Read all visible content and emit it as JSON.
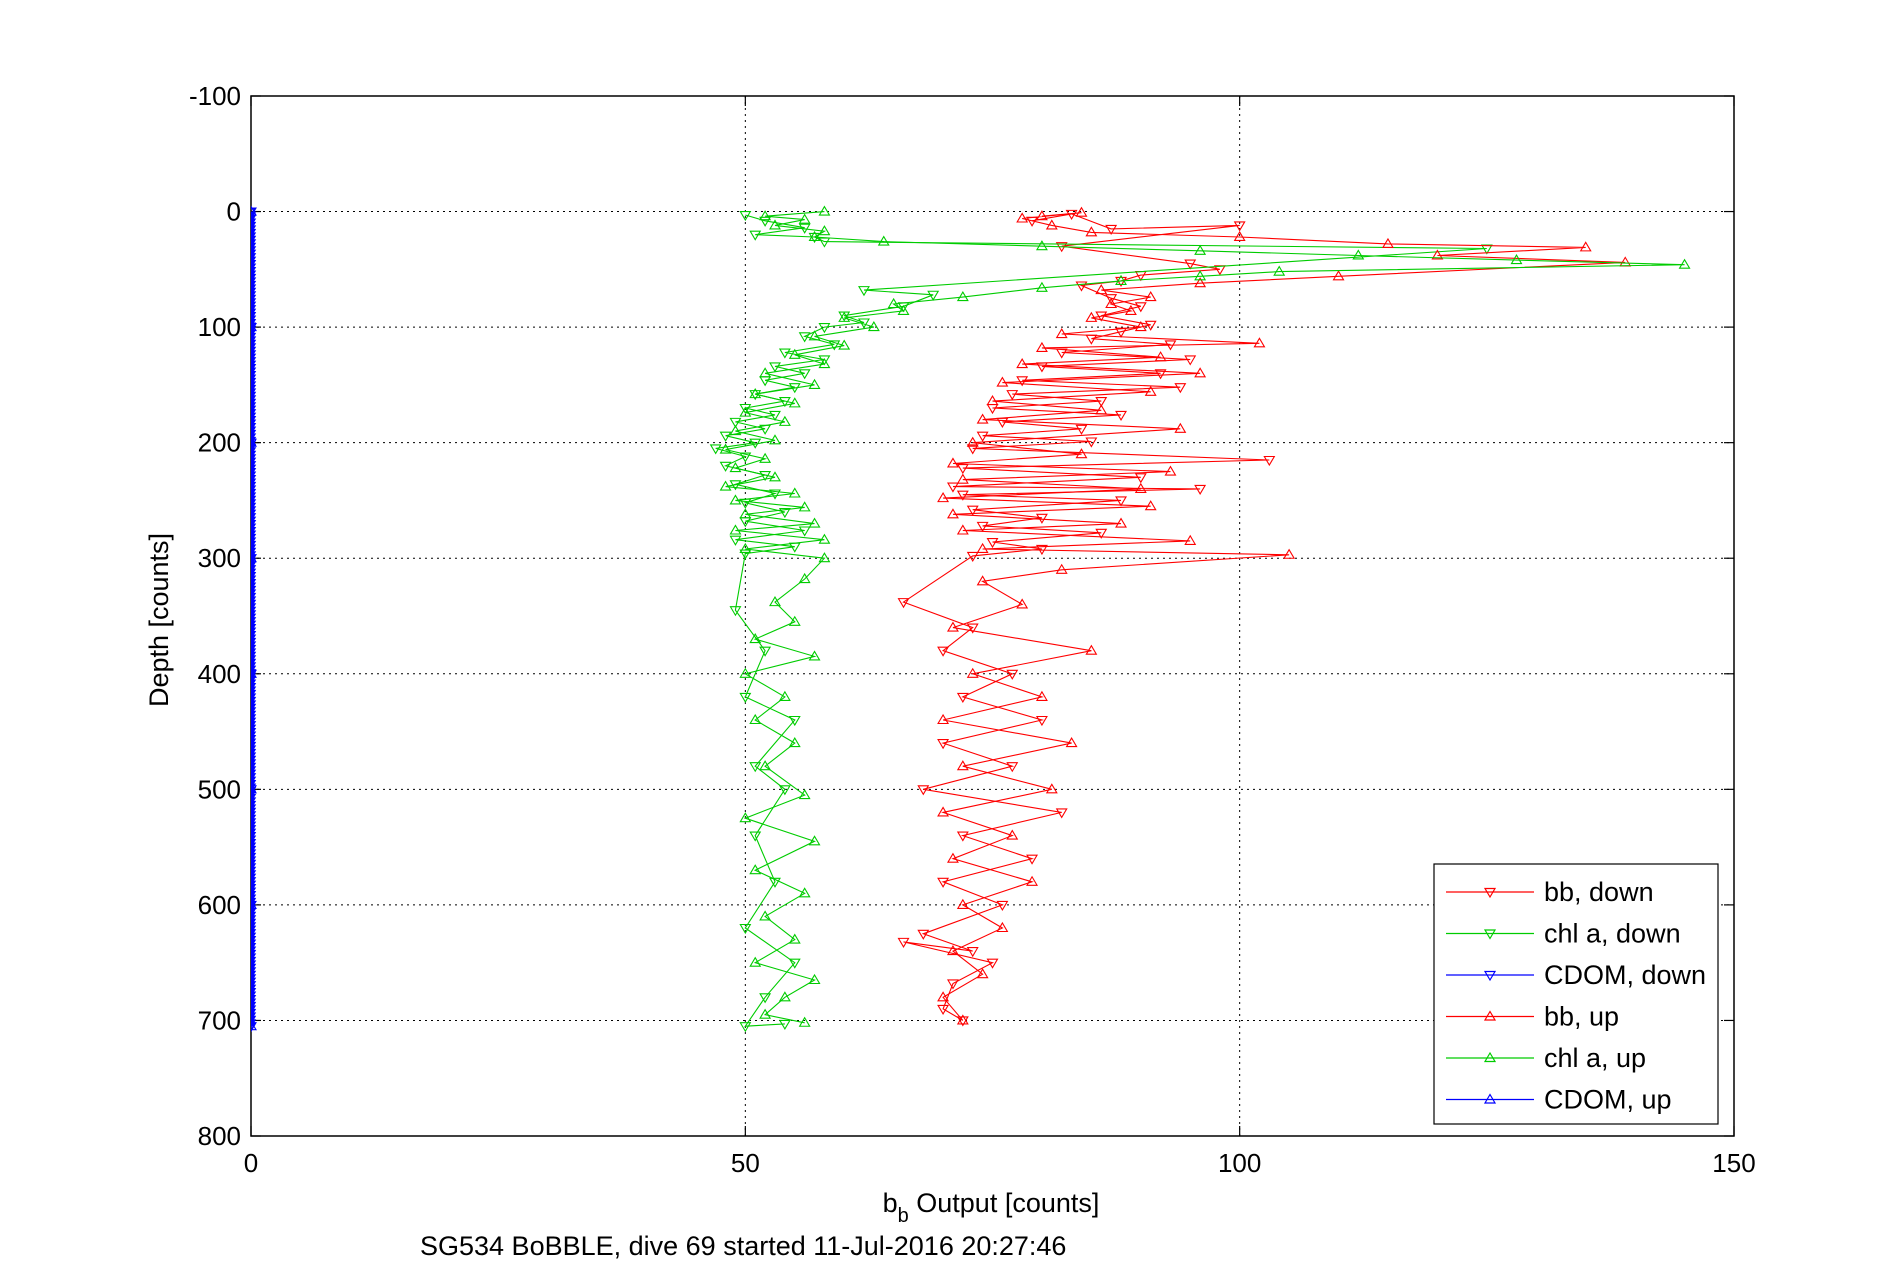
{
  "chart_data": {
    "type": "scatter",
    "xlabel_main": "b",
    "xlabel_sub": "b",
    "xlabel_rest": " Output [counts]",
    "ylabel": "Depth [counts]",
    "caption": "SG534 BoBBLE, dive 69 started 11-Jul-2016 20:27:46",
    "xlim": [
      0,
      150
    ],
    "ylim": [
      -100,
      800
    ],
    "y_reversed": true,
    "grid": true,
    "legend_position": "bottom-right",
    "xticks": [
      "0",
      "50",
      "100",
      "150"
    ],
    "yticks": [
      "-100",
      "0",
      "100",
      "200",
      "300",
      "400",
      "500",
      "600",
      "700",
      "800"
    ],
    "series": [
      {
        "name": "bb, down",
        "color": "#ff0000",
        "marker": "triangle-down",
        "line": true,
        "points": [
          [
            79,
            8
          ],
          [
            83,
            2
          ],
          [
            87,
            15
          ],
          [
            100,
            12
          ],
          [
            82,
            30
          ],
          [
            95,
            45
          ],
          [
            98,
            50
          ],
          [
            90,
            55
          ],
          [
            88,
            60
          ],
          [
            84,
            64
          ],
          [
            87,
            75
          ],
          [
            90,
            82
          ],
          [
            86,
            90
          ],
          [
            91,
            98
          ],
          [
            88,
            104
          ],
          [
            85,
            110
          ],
          [
            93,
            115
          ],
          [
            82,
            122
          ],
          [
            95,
            128
          ],
          [
            80,
            134
          ],
          [
            92,
            140
          ],
          [
            78,
            146
          ],
          [
            94,
            152
          ],
          [
            77,
            158
          ],
          [
            86,
            164
          ],
          [
            75,
            170
          ],
          [
            88,
            176
          ],
          [
            76,
            182
          ],
          [
            84,
            188
          ],
          [
            74,
            194
          ],
          [
            85,
            199
          ],
          [
            73,
            205
          ],
          [
            103,
            215
          ],
          [
            72,
            222
          ],
          [
            90,
            230
          ],
          [
            71,
            238
          ],
          [
            96,
            240
          ],
          [
            72,
            245
          ],
          [
            88,
            250
          ],
          [
            73,
            258
          ],
          [
            80,
            265
          ],
          [
            74,
            272
          ],
          [
            86,
            278
          ],
          [
            75,
            286
          ],
          [
            80,
            292
          ],
          [
            73,
            298
          ],
          [
            66,
            338
          ],
          [
            73,
            360
          ],
          [
            70,
            380
          ],
          [
            77,
            400
          ],
          [
            72,
            420
          ],
          [
            80,
            440
          ],
          [
            70,
            460
          ],
          [
            77,
            480
          ],
          [
            68,
            500
          ],
          [
            82,
            520
          ],
          [
            72,
            540
          ],
          [
            79,
            560
          ],
          [
            70,
            580
          ],
          [
            76,
            600
          ],
          [
            68,
            625
          ],
          [
            73,
            640
          ],
          [
            66,
            632
          ],
          [
            75,
            650
          ],
          [
            71,
            668
          ],
          [
            70,
            690
          ],
          [
            72,
            700
          ]
        ]
      },
      {
        "name": "chl a, down",
        "color": "#00cc00",
        "marker": "triangle-down",
        "line": true,
        "points": [
          [
            50,
            3
          ],
          [
            52,
            8
          ],
          [
            56,
            14
          ],
          [
            51,
            20
          ],
          [
            57,
            22
          ],
          [
            58,
            26
          ],
          [
            125,
            32
          ],
          [
            62,
            68
          ],
          [
            69,
            72
          ],
          [
            66,
            82
          ],
          [
            60,
            90
          ],
          [
            62,
            96
          ],
          [
            58,
            100
          ],
          [
            56,
            108
          ],
          [
            59,
            115
          ],
          [
            54,
            122
          ],
          [
            58,
            128
          ],
          [
            53,
            134
          ],
          [
            56,
            140
          ],
          [
            52,
            146
          ],
          [
            55,
            152
          ],
          [
            51,
            158
          ],
          [
            54,
            164
          ],
          [
            50,
            170
          ],
          [
            53,
            176
          ],
          [
            49,
            182
          ],
          [
            52,
            188
          ],
          [
            48,
            194
          ],
          [
            51,
            200
          ],
          [
            47,
            205
          ],
          [
            50,
            212
          ],
          [
            48,
            220
          ],
          [
            52,
            228
          ],
          [
            49,
            236
          ],
          [
            53,
            244
          ],
          [
            50,
            252
          ],
          [
            54,
            260
          ],
          [
            50,
            268
          ],
          [
            56,
            276
          ],
          [
            49,
            284
          ],
          [
            55,
            290
          ],
          [
            50,
            296
          ],
          [
            49,
            345
          ],
          [
            52,
            380
          ],
          [
            50,
            420
          ],
          [
            55,
            440
          ],
          [
            51,
            480
          ],
          [
            54,
            500
          ],
          [
            51,
            540
          ],
          [
            53,
            580
          ],
          [
            50,
            620
          ],
          [
            55,
            650
          ],
          [
            52,
            680
          ],
          [
            50,
            705
          ],
          [
            54,
            703
          ]
        ]
      },
      {
        "name": "CDOM, down",
        "color": "#0000ff",
        "marker": "triangle-down",
        "line": true,
        "points": [
          [
            0,
            0
          ],
          [
            0,
            100
          ],
          [
            0,
            200
          ],
          [
            0,
            300
          ],
          [
            0,
            400
          ],
          [
            0,
            500
          ],
          [
            0,
            600
          ],
          [
            0,
            705
          ]
        ]
      },
      {
        "name": "bb, up",
        "color": "#ff0000",
        "marker": "triangle-up",
        "line": true,
        "points": [
          [
            72,
            700
          ],
          [
            70,
            680
          ],
          [
            74,
            660
          ],
          [
            71,
            640
          ],
          [
            76,
            620
          ],
          [
            72,
            600
          ],
          [
            79,
            580
          ],
          [
            71,
            560
          ],
          [
            77,
            540
          ],
          [
            70,
            520
          ],
          [
            81,
            500
          ],
          [
            72,
            480
          ],
          [
            83,
            460
          ],
          [
            70,
            440
          ],
          [
            80,
            420
          ],
          [
            73,
            400
          ],
          [
            85,
            380
          ],
          [
            71,
            360
          ],
          [
            78,
            340
          ],
          [
            74,
            320
          ],
          [
            82,
            310
          ],
          [
            105,
            297
          ],
          [
            74,
            292
          ],
          [
            95,
            285
          ],
          [
            72,
            276
          ],
          [
            88,
            270
          ],
          [
            71,
            262
          ],
          [
            91,
            255
          ],
          [
            70,
            248
          ],
          [
            90,
            240
          ],
          [
            72,
            232
          ],
          [
            93,
            225
          ],
          [
            71,
            218
          ],
          [
            84,
            210
          ],
          [
            73,
            200
          ],
          [
            94,
            188
          ],
          [
            74,
            180
          ],
          [
            86,
            172
          ],
          [
            75,
            164
          ],
          [
            91,
            156
          ],
          [
            76,
            148
          ],
          [
            96,
            140
          ],
          [
            78,
            132
          ],
          [
            92,
            126
          ],
          [
            80,
            118
          ],
          [
            102,
            114
          ],
          [
            82,
            106
          ],
          [
            90,
            100
          ],
          [
            85,
            92
          ],
          [
            89,
            86
          ],
          [
            87,
            80
          ],
          [
            91,
            74
          ],
          [
            86,
            68
          ],
          [
            96,
            62
          ],
          [
            110,
            56
          ],
          [
            139,
            44
          ],
          [
            120,
            38
          ],
          [
            135,
            31
          ],
          [
            115,
            28
          ],
          [
            100,
            22
          ],
          [
            85,
            18
          ],
          [
            81,
            12
          ],
          [
            78,
            6
          ],
          [
            84,
            1
          ],
          [
            80,
            4
          ]
        ]
      },
      {
        "name": "chl a, up",
        "color": "#00cc00",
        "marker": "triangle-up",
        "line": true,
        "points": [
          [
            56,
            702
          ],
          [
            52,
            695
          ],
          [
            54,
            680
          ],
          [
            57,
            665
          ],
          [
            51,
            650
          ],
          [
            55,
            630
          ],
          [
            52,
            610
          ],
          [
            56,
            590
          ],
          [
            51,
            570
          ],
          [
            57,
            545
          ],
          [
            50,
            525
          ],
          [
            56,
            505
          ],
          [
            52,
            480
          ],
          [
            55,
            460
          ],
          [
            51,
            440
          ],
          [
            54,
            420
          ],
          [
            50,
            400
          ],
          [
            57,
            385
          ],
          [
            51,
            370
          ],
          [
            55,
            355
          ],
          [
            53,
            338
          ],
          [
            56,
            318
          ],
          [
            58,
            300
          ],
          [
            50,
            292
          ],
          [
            58,
            284
          ],
          [
            49,
            276
          ],
          [
            57,
            270
          ],
          [
            50,
            262
          ],
          [
            56,
            256
          ],
          [
            49,
            250
          ],
          [
            55,
            244
          ],
          [
            48,
            238
          ],
          [
            53,
            230
          ],
          [
            49,
            222
          ],
          [
            52,
            214
          ],
          [
            48,
            206
          ],
          [
            53,
            198
          ],
          [
            49,
            190
          ],
          [
            54,
            182
          ],
          [
            50,
            174
          ],
          [
            55,
            166
          ],
          [
            51,
            158
          ],
          [
            57,
            150
          ],
          [
            52,
            140
          ],
          [
            58,
            132
          ],
          [
            55,
            124
          ],
          [
            60,
            116
          ],
          [
            57,
            108
          ],
          [
            63,
            100
          ],
          [
            60,
            92
          ],
          [
            66,
            86
          ],
          [
            65,
            80
          ],
          [
            72,
            74
          ],
          [
            80,
            66
          ],
          [
            88,
            60
          ],
          [
            96,
            56
          ],
          [
            104,
            52
          ],
          [
            145,
            46
          ],
          [
            128,
            42
          ],
          [
            112,
            38
          ],
          [
            96,
            34
          ],
          [
            80,
            30
          ],
          [
            64,
            26
          ],
          [
            57,
            22
          ],
          [
            58,
            17
          ],
          [
            53,
            12
          ],
          [
            56,
            7
          ],
          [
            52,
            4
          ],
          [
            58,
            0
          ]
        ]
      },
      {
        "name": "CDOM, up",
        "color": "#0000ff",
        "marker": "triangle-up",
        "line": true,
        "points": [
          [
            0,
            705
          ],
          [
            0,
            600
          ],
          [
            0,
            500
          ],
          [
            0,
            400
          ],
          [
            0,
            300
          ],
          [
            0,
            200
          ],
          [
            0,
            100
          ],
          [
            0,
            0
          ]
        ]
      }
    ]
  }
}
